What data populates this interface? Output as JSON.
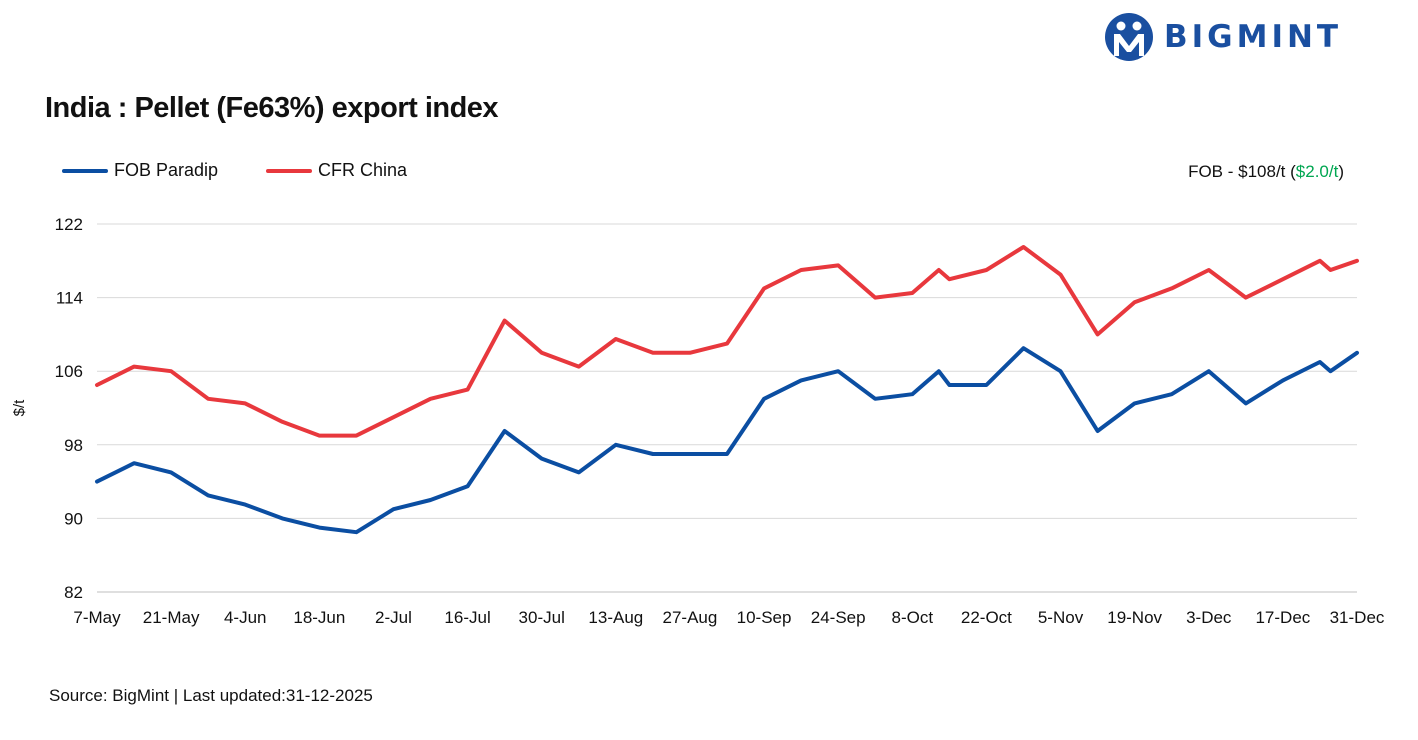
{
  "brand": {
    "name": "BIGMINT",
    "color": "#1a4fa0"
  },
  "header": {
    "title": "India : Pellet (Fe63%) export index"
  },
  "annotation": {
    "prefix": "FOB - $108/t (",
    "change": "$2.0/t",
    "suffix": ")",
    "change_color": "#00a651"
  },
  "footer": {
    "source": "Source: BigMint | Last updated:31-12-2025"
  },
  "chart_data": {
    "type": "line",
    "title": "India : Pellet (Fe63%) export index",
    "xlabel": "",
    "ylabel": "$/t",
    "ylim": [
      82,
      122
    ],
    "yticks": [
      82,
      90,
      98,
      106,
      114,
      122
    ],
    "xtick_labels": [
      "7-May",
      "21-May",
      "4-Jun",
      "18-Jun",
      "2-Jul",
      "16-Jul",
      "30-Jul",
      "13-Aug",
      "27-Aug",
      "10-Sep",
      "24-Sep",
      "8-Oct",
      "22-Oct",
      "5-Nov",
      "19-Nov",
      "3-Dec",
      "17-Dec",
      "31-Dec"
    ],
    "grid": true,
    "legend": "top-left",
    "series": [
      {
        "name": "FOB Paradip",
        "color": "#0b4ea2",
        "points": [
          [
            "7-May",
            94
          ],
          [
            "14-May",
            96
          ],
          [
            "21-May",
            95
          ],
          [
            "28-May",
            92.5
          ],
          [
            "4-Jun",
            91.5
          ],
          [
            "11-Jun",
            90
          ],
          [
            "18-Jun",
            89
          ],
          [
            "25-Jun",
            88.5
          ],
          [
            "2-Jul",
            91
          ],
          [
            "9-Jul",
            92
          ],
          [
            "16-Jul",
            93.5
          ],
          [
            "23-Jul",
            99.5
          ],
          [
            "30-Jul",
            96.5
          ],
          [
            "6-Aug",
            95
          ],
          [
            "13-Aug",
            98
          ],
          [
            "20-Aug",
            97
          ],
          [
            "27-Aug",
            97
          ],
          [
            "3-Sep",
            97
          ],
          [
            "10-Sep",
            103
          ],
          [
            "17-Sep",
            105
          ],
          [
            "24-Sep",
            106
          ],
          [
            "1-Oct",
            103
          ],
          [
            "8-Oct",
            103.5
          ],
          [
            "13-Oct",
            106
          ],
          [
            "15-Oct",
            104.5
          ],
          [
            "22-Oct",
            104.5
          ],
          [
            "29-Oct",
            108.5
          ],
          [
            "5-Nov",
            106
          ],
          [
            "12-Nov",
            99.5
          ],
          [
            "19-Nov",
            102.5
          ],
          [
            "26-Nov",
            103.5
          ],
          [
            "3-Dec",
            106
          ],
          [
            "10-Dec",
            102.5
          ],
          [
            "17-Dec",
            105
          ],
          [
            "24-Dec",
            107
          ],
          [
            "26-Dec",
            106
          ],
          [
            "31-Dec",
            108
          ]
        ]
      },
      {
        "name": "CFR China",
        "color": "#e8383d",
        "points": [
          [
            "7-May",
            104.5
          ],
          [
            "14-May",
            106.5
          ],
          [
            "21-May",
            106
          ],
          [
            "28-May",
            103
          ],
          [
            "4-Jun",
            102.5
          ],
          [
            "11-Jun",
            100.5
          ],
          [
            "18-Jun",
            99
          ],
          [
            "25-Jun",
            99
          ],
          [
            "2-Jul",
            101
          ],
          [
            "9-Jul",
            103
          ],
          [
            "16-Jul",
            104
          ],
          [
            "23-Jul",
            111.5
          ],
          [
            "30-Jul",
            108
          ],
          [
            "6-Aug",
            106.5
          ],
          [
            "13-Aug",
            109.5
          ],
          [
            "20-Aug",
            108
          ],
          [
            "27-Aug",
            108
          ],
          [
            "3-Sep",
            109
          ],
          [
            "10-Sep",
            115
          ],
          [
            "17-Sep",
            117
          ],
          [
            "24-Sep",
            117.5
          ],
          [
            "1-Oct",
            114
          ],
          [
            "8-Oct",
            114.5
          ],
          [
            "13-Oct",
            117
          ],
          [
            "15-Oct",
            116
          ],
          [
            "22-Oct",
            117
          ],
          [
            "29-Oct",
            119.5
          ],
          [
            "5-Nov",
            116.5
          ],
          [
            "12-Nov",
            110
          ],
          [
            "19-Nov",
            113.5
          ],
          [
            "26-Nov",
            115
          ],
          [
            "3-Dec",
            117
          ],
          [
            "10-Dec",
            114
          ],
          [
            "17-Dec",
            116
          ],
          [
            "24-Dec",
            118
          ],
          [
            "26-Dec",
            117
          ],
          [
            "31-Dec",
            118
          ]
        ]
      }
    ]
  }
}
